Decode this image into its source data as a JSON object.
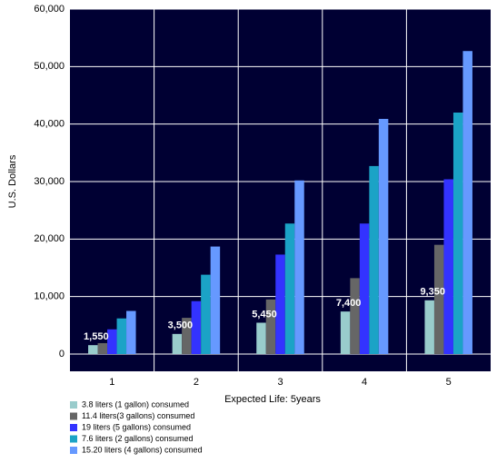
{
  "chart_data": {
    "type": "bar",
    "xlabel": "Expected Life: 5years",
    "ylabel": "U.S. Dollars",
    "categories": [
      "1",
      "2",
      "3",
      "4",
      "5"
    ],
    "series": [
      {
        "name": "3.8 liters (1 gallon) consumed",
        "color": "#99cccc",
        "values": [
          1550,
          3500,
          5450,
          7400,
          9350
        ],
        "value_labels": [
          "1,550",
          "3,500",
          "5,450",
          "7,400",
          "9,350"
        ]
      },
      {
        "name": "11.4 liters(3 gallons) consumed",
        "color": "#666666",
        "values": [
          1900,
          6300,
          9500,
          13200,
          19000
        ]
      },
      {
        "name": "19 liters (5 gallons) consumed",
        "color": "#3333ff",
        "values": [
          4300,
          9200,
          17300,
          22700,
          30400
        ]
      },
      {
        "name": "7.6 liters (2 gallons) consumed",
        "color": "#1ba3c6",
        "values": [
          6200,
          13800,
          22700,
          32700,
          42000
        ]
      },
      {
        "name": "15.20 liters (4 gallons) consumed",
        "color": "#6699ff",
        "values": [
          7500,
          18700,
          30200,
          40900,
          52700
        ]
      }
    ],
    "ylim": [
      -3000,
      60000
    ],
    "yticks": [
      0,
      {
        "value": 10000,
        "label": "10,000"
      },
      {
        "value": 20000,
        "label": "20,000"
      },
      {
        "value": 30000,
        "label": "30,000"
      },
      {
        "value": 40000,
        "label": "40,000"
      },
      {
        "value": 50000,
        "label": "50,000"
      },
      {
        "value": 60000,
        "label": "60,000"
      }
    ],
    "grid": true,
    "background": "#000033"
  }
}
